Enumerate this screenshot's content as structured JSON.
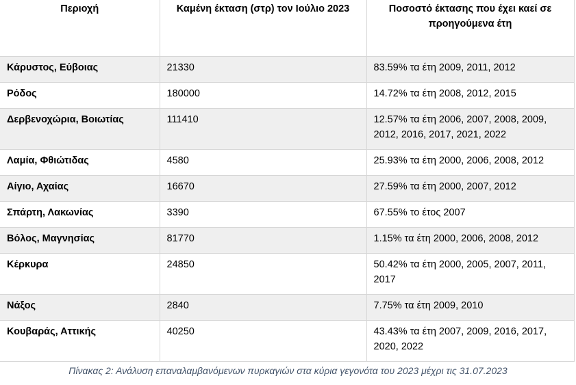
{
  "table": {
    "headers": [
      "Περιοχή",
      "Καμένη έκταση (στρ) τον Ιούλιο 2023",
      "Ποσοστό έκτασης που έχει καεί σε προηγούμενα έτη"
    ],
    "rows": [
      {
        "region": "Κάρυστος, Εύβοιας",
        "area": "21330",
        "percent": "83.59% τα έτη 2009, 2011, 2012",
        "shaded": true
      },
      {
        "region": "Ρόδος",
        "area": "180000",
        "percent": "14.72% τα έτη 2008, 2012, 2015",
        "shaded": false
      },
      {
        "region": "Δερβενοχώρια, Βοιωτίας",
        "area": "111410",
        "percent": "12.57% τα έτη 2006, 2007, 2008, 2009, 2012, 2016, 2017, 2021, 2022",
        "shaded": true
      },
      {
        "region": "Λαμία, Φθιώτιδας",
        "area": "4580",
        "percent": "25.93% τα έτη 2000, 2006, 2008, 2012",
        "shaded": false
      },
      {
        "region": "Αίγιο, Αχαίας",
        "area": "16670",
        "percent": "27.59% τα έτη 2000, 2007, 2012",
        "shaded": true
      },
      {
        "region": "Σπάρτη, Λακωνίας",
        "area": "3390",
        "percent": "67.55% το έτος 2007",
        "shaded": false
      },
      {
        "region": "Βόλος, Μαγνησίας",
        "area": "81770",
        "percent": "1.15% τα έτη 2000, 2006, 2008, 2012",
        "shaded": true
      },
      {
        "region": "Κέρκυρα",
        "area": "24850",
        "percent": "50.42% τα έτη 2000, 2005, 2007, 2011, 2017",
        "shaded": false
      },
      {
        "region": "Νάξος",
        "area": "2840",
        "percent": "7.75% τα έτη 2009, 2010",
        "shaded": true
      },
      {
        "region": "Κουβαράς, Αττικής",
        "area": "40250",
        "percent": "43.43% τα έτη 2007, 2009, 2016, 2017, 2020, 2022",
        "shaded": false
      }
    ]
  },
  "caption": "Πίνακας 2: Ανάλυση επαναλαμβανόμενων πυρκαγιών στα κύρια γεγονότα του 2023 μέχρι τις 31.07.2023",
  "colors": {
    "shaded_row": "#efefef",
    "caption_text": "#44546a",
    "border": "#d6d6d6"
  }
}
